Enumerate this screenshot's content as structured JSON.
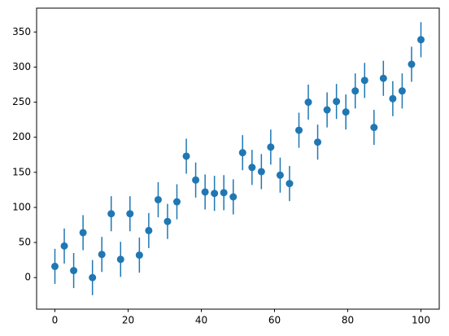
{
  "chart_data": {
    "type": "errorbar",
    "color": "#1f77b4",
    "x": [
      0,
      2.56,
      5.13,
      7.69,
      10.26,
      12.82,
      15.38,
      17.95,
      20.51,
      23.08,
      25.64,
      28.21,
      30.77,
      33.33,
      35.9,
      38.46,
      41.03,
      43.59,
      46.15,
      48.72,
      51.28,
      53.85,
      56.41,
      58.97,
      61.54,
      64.1,
      66.67,
      69.23,
      71.79,
      74.36,
      76.92,
      79.49,
      82.05,
      84.62,
      87.18,
      89.74,
      92.31,
      94.87,
      97.44,
      100
    ],
    "values": [
      16,
      45,
      10,
      64,
      0,
      33,
      91,
      26,
      91,
      32,
      67,
      111,
      80,
      108,
      173,
      139,
      122,
      120,
      121,
      115,
      178,
      157,
      151,
      186,
      146,
      134,
      210,
      250,
      193,
      239,
      251,
      236,
      266,
      281,
      214,
      284,
      255,
      266,
      304,
      339
    ],
    "errors": [
      25,
      25,
      25,
      25,
      25,
      25,
      25,
      25,
      25,
      25,
      25,
      25,
      25,
      25,
      25,
      25,
      25,
      25,
      25,
      25,
      25,
      25,
      25,
      25,
      25,
      25,
      25,
      25,
      25,
      25,
      25,
      25,
      25,
      25,
      25,
      25,
      25,
      25,
      25,
      25
    ],
    "xlim": [
      -5,
      105
    ],
    "ylim": [
      -45,
      384
    ],
    "xticks": [
      0,
      20,
      40,
      60,
      80,
      100
    ],
    "yticks": [
      0,
      50,
      100,
      150,
      200,
      250,
      300,
      350
    ]
  }
}
